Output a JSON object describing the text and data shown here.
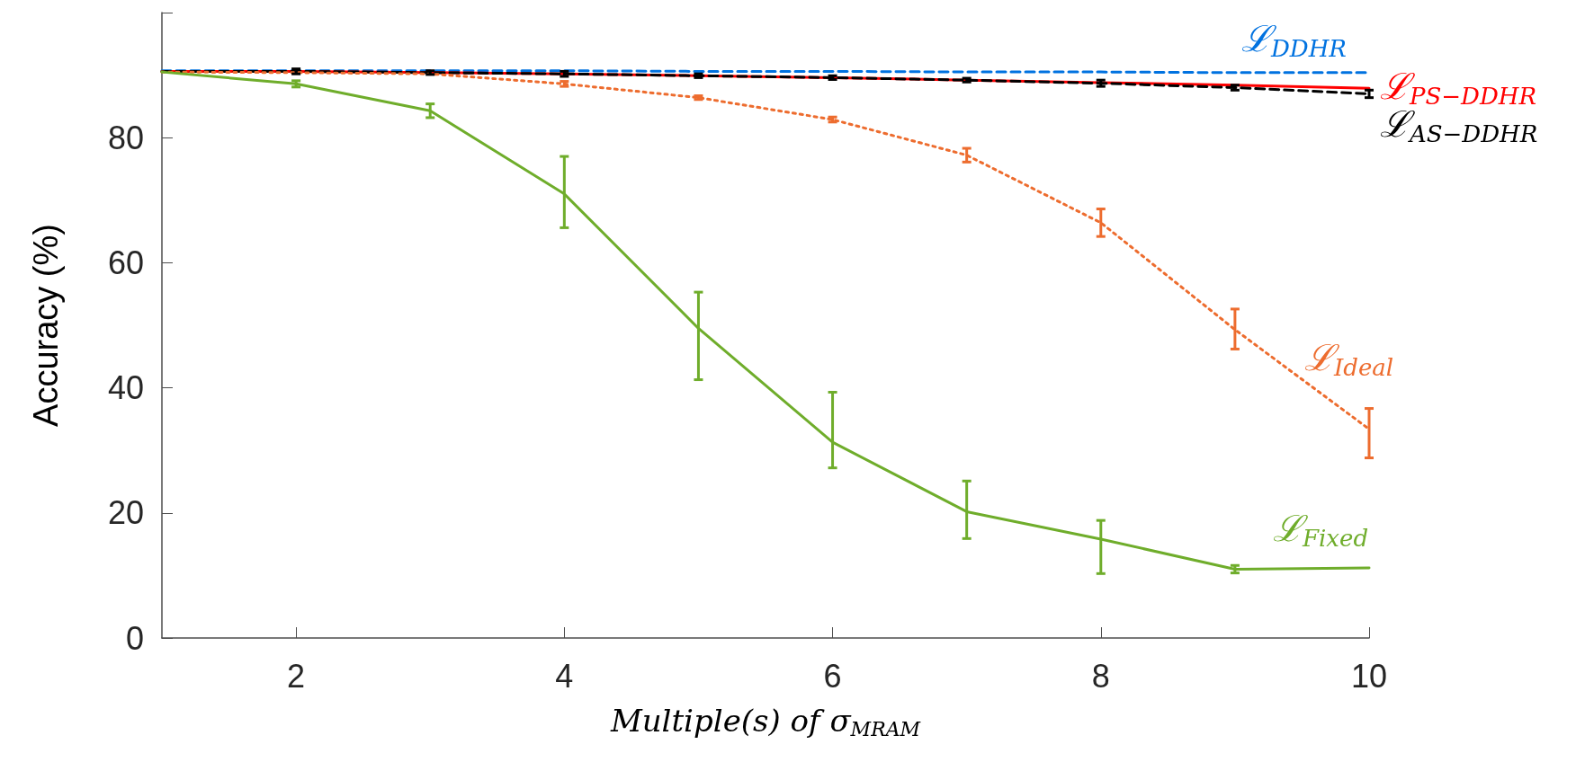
{
  "chart_data": {
    "type": "line",
    "xlabel": "Multiple(s) of σ$_{MRAM}$",
    "ylabel": "Accuracy (%)",
    "x": [
      1,
      2,
      3,
      4,
      5,
      6,
      7,
      8,
      9,
      10
    ],
    "xlim": [
      1,
      10
    ],
    "xticks": [
      2,
      4,
      6,
      8,
      10
    ],
    "ylim": [
      0,
      100
    ],
    "yticks": [
      0,
      20,
      40,
      60,
      80,
      {
        "value": 100,
        "label": null
      }
    ],
    "grid": false,
    "legend": false,
    "marker": "none",
    "series": [
      {
        "name": "ℒ$_{DDHR}$",
        "color": "#0072e0",
        "line_style": "dashed",
        "values": [
          90.7,
          90.7,
          90.7,
          90.7,
          90.6,
          90.6,
          90.5,
          90.5,
          90.4,
          90.4
        ]
      },
      {
        "name": "ℒ$_{PS−DDHR}$",
        "color": "#ff0000",
        "line_style": "solid",
        "values": [
          90.6,
          90.6,
          90.4,
          90.2,
          89.9,
          89.6,
          89.2,
          88.8,
          88.4,
          87.9
        ]
      },
      {
        "name": "ℒ$_{AS−DDHR}$",
        "color": "#000000",
        "line_style": "dashed",
        "values": [
          90.6,
          90.6,
          90.4,
          90.2,
          89.9,
          89.6,
          89.2,
          88.7,
          88.0,
          87.0
        ],
        "errors": [
          null,
          0.4,
          0.3,
          0.4,
          0.3,
          0.3,
          0.3,
          0.5,
          0.4,
          0.6
        ]
      },
      {
        "name": "ℒ$_{Ideal}$",
        "color": "#ed6c2e",
        "line_style": "dotted",
        "values": [
          90.5,
          90.4,
          90.2,
          88.6,
          86.4,
          82.9,
          77.2,
          66.4,
          49.3,
          33.4
        ],
        "errors": [
          null,
          null,
          null,
          0.4,
          0.3,
          0.4,
          1.1,
          2.2,
          [
            46.2,
            52.6
          ],
          [
            28.8,
            36.7
          ]
        ]
      },
      {
        "name": "ℒ$_{Fixed}$",
        "color": "#6fad2b",
        "line_style": "solid",
        "values": [
          90.5,
          88.6,
          84.3,
          71.0,
          49.5,
          31.3,
          20.2,
          15.8,
          11.0,
          11.2
        ],
        "errors": [
          null,
          0.5,
          1.1,
          [
            65.6,
            77.0
          ],
          [
            41.3,
            55.3
          ],
          [
            27.2,
            39.3
          ],
          [
            15.9,
            25.1
          ],
          [
            10.3,
            18.8
          ],
          0.6,
          null
        ]
      }
    ]
  }
}
